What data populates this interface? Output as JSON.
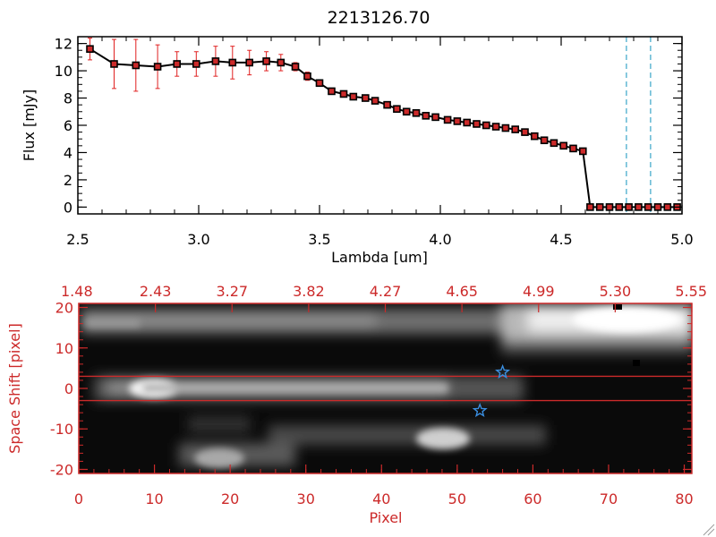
{
  "chart_data": [
    {
      "type": "line",
      "title": "2213126.70",
      "xlabel": "Lambda [um]",
      "ylabel": "Flux [mJy]",
      "xlim": [
        2.5,
        5.0
      ],
      "ylim": [
        -0.5,
        12.5
      ],
      "xticks": [
        "2.5",
        "3.0",
        "3.5",
        "4.0",
        "4.5",
        "5.0"
      ],
      "yticks": [
        "0",
        "2",
        "4",
        "6",
        "8",
        "10",
        "12"
      ],
      "colors": {
        "line": "#000000",
        "marker": "#cc2a2a",
        "errorbar": "#e02020",
        "vline": "#3aa6c8"
      },
      "series": [
        {
          "x": [
            2.55,
            2.65,
            2.74,
            2.83,
            2.91,
            2.99,
            3.07,
            3.14,
            3.21,
            3.28,
            3.34,
            3.4,
            3.45,
            3.5,
            3.55,
            3.6,
            3.64,
            3.69,
            3.73,
            3.78,
            3.82,
            3.86,
            3.9,
            3.94,
            3.98,
            4.03,
            4.07,
            4.11,
            4.15,
            4.19,
            4.23,
            4.27,
            4.31,
            4.35,
            4.39,
            4.43,
            4.47,
            4.51,
            4.55,
            4.59,
            4.62,
            4.66,
            4.7,
            4.74,
            4.78,
            4.82,
            4.86,
            4.9,
            4.94,
            4.98
          ],
          "y": [
            11.6,
            10.5,
            10.4,
            10.3,
            10.5,
            10.5,
            10.7,
            10.6,
            10.6,
            10.7,
            10.6,
            10.3,
            9.6,
            9.1,
            8.5,
            8.3,
            8.1,
            8.0,
            7.8,
            7.5,
            7.2,
            7.0,
            6.9,
            6.7,
            6.6,
            6.4,
            6.3,
            6.2,
            6.1,
            6.0,
            5.9,
            5.8,
            5.7,
            5.5,
            5.2,
            4.9,
            4.7,
            4.5,
            4.3,
            4.1,
            0,
            0,
            0,
            0,
            0,
            0,
            0,
            0,
            0,
            0
          ],
          "yerr": [
            0.8,
            1.8,
            1.9,
            1.6,
            0.9,
            0.9,
            1.1,
            1.2,
            0.9,
            0.7,
            0.6,
            0.3,
            0.3,
            0.2,
            0.2,
            0.15,
            0.15,
            0.15,
            0.15,
            0.15,
            0.1,
            0.1,
            0.1,
            0.1,
            0.1,
            0.1,
            0.1,
            0.1,
            0.1,
            0.1,
            0.1,
            0.1,
            0.1,
            0.1,
            0.1,
            0.1,
            0.1,
            0.1,
            0.1,
            0.1,
            0,
            0,
            0,
            0,
            0,
            0,
            0,
            0,
            0,
            0
          ]
        }
      ],
      "vlines": [
        4.77,
        4.87
      ]
    },
    {
      "type": "heatmap",
      "xlabel": "Pixel",
      "ylabel": "Space Shift [pixel]",
      "xlim": [
        0,
        81
      ],
      "ylim": [
        -21,
        21
      ],
      "xticks": [
        "0",
        "10",
        "20",
        "30",
        "40",
        "50",
        "60",
        "70",
        "80"
      ],
      "yticks": [
        "-20",
        "-10",
        "0",
        "10",
        "20"
      ],
      "top_axis_ticks": [
        "1.48",
        "2.43",
        "3.27",
        "3.82",
        "4.27",
        "4.65",
        "4.99",
        "5.30",
        "5.55"
      ],
      "hlines": [
        3,
        -3
      ],
      "stars": [
        {
          "x": 56,
          "y": 4
        },
        {
          "x": 53,
          "y": -5.5
        }
      ],
      "colors": {
        "axis": "#cc2a2a",
        "star": "#3a8ee0",
        "hline": "#cc2a2a"
      }
    }
  ]
}
